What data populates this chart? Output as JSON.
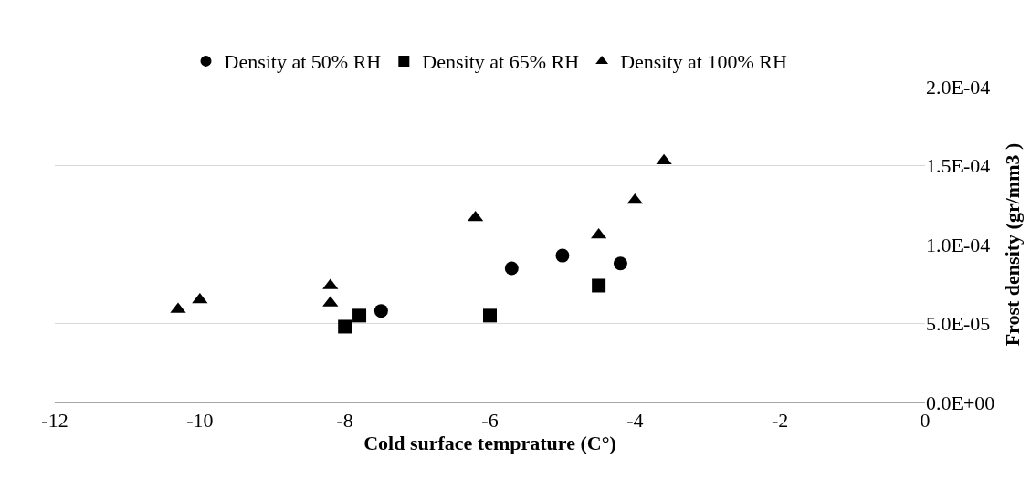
{
  "chart_data": {
    "type": "scatter",
    "xlabel": "Cold surface temprature (C°)",
    "ylabel": "Frost density (gr/mm3 )",
    "series": [
      {
        "name": "Density at 50% RH",
        "color": "#000000",
        "marker": "circle",
        "x": [
          -7.5,
          -5.7,
          -5.0,
          -4.2
        ],
        "values": [
          5.8e-05,
          8.5e-05,
          9.3e-05,
          8.8e-05
        ]
      },
      {
        "name": "Density at 65% RH",
        "color": "#000000",
        "marker": "square",
        "x": [
          -8.0,
          -7.8,
          -6.0,
          -4.5
        ],
        "values": [
          4.8e-05,
          5.5e-05,
          5.5e-05,
          7.4e-05
        ]
      },
      {
        "name": "Density at 100% RH",
        "color": "#000000",
        "marker": "triangle",
        "x": [
          -10.3,
          -10.0,
          -8.2,
          -8.2,
          -6.2,
          -4.5,
          -4.0,
          -3.6
        ],
        "values": [
          5.9e-05,
          6.5e-05,
          7.4e-05,
          6.3e-05,
          0.000117,
          0.000106,
          0.000128,
          0.000153
        ]
      }
    ],
    "xlim": [
      -12,
      0
    ],
    "xticks": [
      -12,
      -10,
      -8,
      -6,
      -4,
      -2,
      0
    ],
    "ylim": [
      0,
      0.0002
    ],
    "yticks": [
      {
        "value": 0,
        "label": "0.0E+00"
      },
      {
        "value": 5e-05,
        "label": "5.0E-05"
      },
      {
        "value": 0.0001,
        "label": "1.0E-04"
      },
      {
        "value": 0.00015,
        "label": "1.5E-04"
      },
      {
        "value": 0.0002,
        "label": "2.0E-04"
      }
    ],
    "grid": "y",
    "legend": "top"
  }
}
